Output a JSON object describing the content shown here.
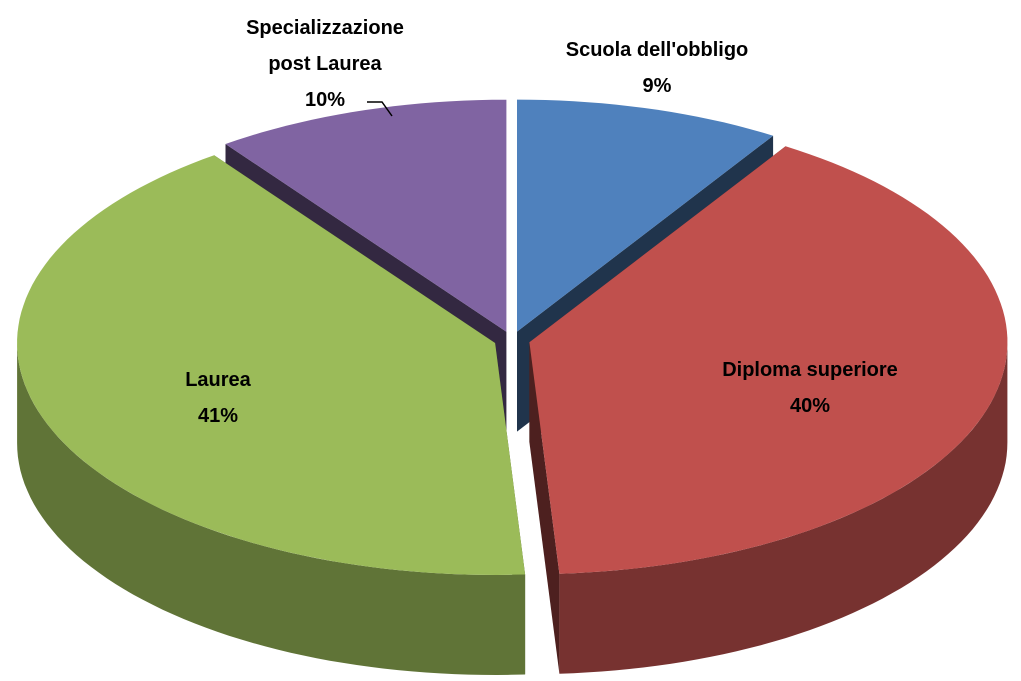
{
  "chart_data": {
    "type": "pie",
    "categories": [
      "Scuola dell'obbligo",
      "Diploma superiore",
      "Laurea",
      "Specializzazione post Laurea"
    ],
    "values": [
      9,
      40,
      41,
      10
    ],
    "value_labels": [
      "9%",
      "40%",
      "41%",
      "10%"
    ],
    "colors": [
      "#4f81bd",
      "#c0504d",
      "#9bbb59",
      "#8064a2"
    ]
  }
}
